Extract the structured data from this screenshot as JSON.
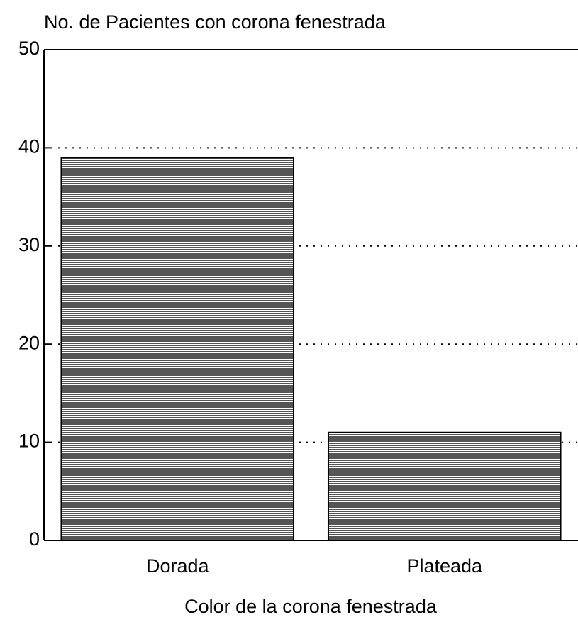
{
  "chart_data": {
    "type": "bar",
    "title": "No. de Pacientes con corona fenestrada",
    "x_label": "Color de la corona fenestrada",
    "categories": [
      "Dorada",
      "Plateada"
    ],
    "values": [
      39,
      11
    ],
    "color": "#555555",
    "ylim": [
      0,
      50
    ],
    "yticks": [
      0,
      10,
      20,
      30,
      40,
      50
    ],
    "grid": true
  }
}
